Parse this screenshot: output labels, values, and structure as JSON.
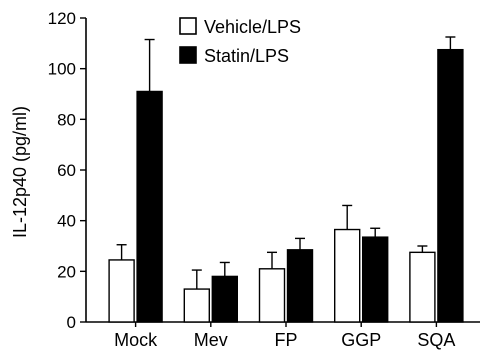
{
  "chart_data": {
    "type": "bar",
    "title": "",
    "xlabel": "",
    "ylabel": "IL-12p40 (pg/ml)",
    "ylim": [
      0,
      120
    ],
    "yticks": [
      0,
      20,
      40,
      60,
      80,
      100,
      120
    ],
    "grid": false,
    "legend_position": "top-center",
    "categories": [
      "Mock",
      "Mev",
      "FP",
      "GGP",
      "SQA"
    ],
    "series": [
      {
        "name": "Vehicle/LPS",
        "fill": "#ffffff",
        "values": [
          24.5,
          13.0,
          21.0,
          36.5,
          27.5
        ],
        "errors": [
          6.0,
          7.5,
          6.5,
          9.5,
          2.5
        ]
      },
      {
        "name": "Statin/LPS",
        "fill": "#000000",
        "values": [
          91.0,
          18.0,
          28.5,
          33.5,
          107.5
        ],
        "errors": [
          20.5,
          5.5,
          4.5,
          3.5,
          5.0
        ]
      }
    ]
  }
}
